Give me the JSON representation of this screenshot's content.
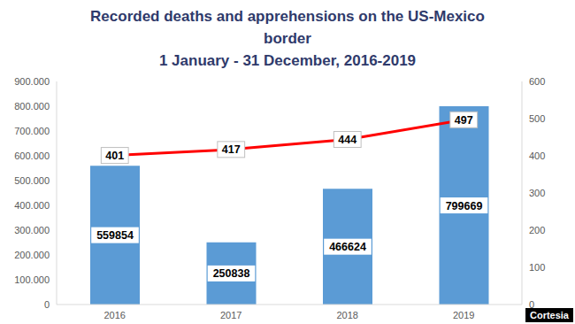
{
  "chart_data": {
    "type": "combo",
    "title": "Recorded deaths and apprehensions on the US-Mexico border",
    "subtitle": "1 January - 31 December, 2016-2019",
    "annotations": [
      "Cortesia"
    ],
    "categories": [
      "2016",
      "2017",
      "2018",
      "2019"
    ],
    "series": [
      {
        "type": "bar",
        "color": "#5b9bd5",
        "values": [
          559854,
          250838,
          466624,
          799669
        ]
      },
      {
        "type": "line",
        "axis": "y2",
        "color": "#ff0000",
        "values": [
          401,
          417,
          444,
          497
        ]
      }
    ],
    "ylim": [
      0,
      900000
    ],
    "yticks": [
      0,
      {
        "value": 100000,
        "label": "100.000"
      },
      {
        "value": 200000,
        "label": "200.000"
      },
      {
        "value": 300000,
        "label": "300.000"
      },
      {
        "value": 400000,
        "label": "400.000"
      },
      {
        "value": 500000,
        "label": "500.000"
      },
      {
        "value": 600000,
        "label": "600.000"
      },
      {
        "value": 700000,
        "label": "700.000"
      },
      {
        "value": 800000,
        "label": "800.000"
      },
      {
        "value": 900000,
        "label": "900.000"
      }
    ],
    "y2lim": [
      0,
      600
    ],
    "y2ticks": [
      0,
      100,
      200,
      300,
      400,
      500,
      600
    ],
    "grid": false,
    "data_labels": true
  }
}
